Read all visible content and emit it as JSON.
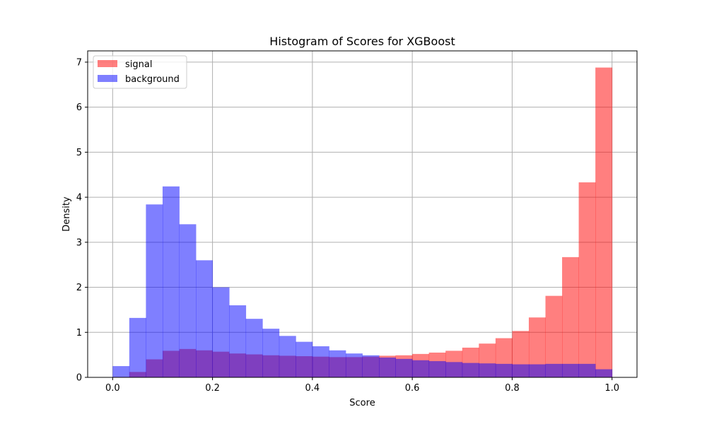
{
  "chart_data": {
    "type": "bar",
    "title": "Histogram of Scores for XGBoost",
    "xlabel": "Score",
    "ylabel": "Density",
    "xlim": [
      -0.05,
      1.05
    ],
    "ylim": [
      0,
      7.25
    ],
    "xticks": [
      0.0,
      0.2,
      0.4,
      0.6,
      0.8,
      1.0
    ],
    "xtick_labels": [
      "0.0",
      "0.2",
      "0.4",
      "0.6",
      "0.8",
      "1.0"
    ],
    "yticks": [
      0,
      1,
      2,
      3,
      4,
      5,
      6,
      7
    ],
    "ytick_labels": [
      "0",
      "1",
      "2",
      "3",
      "4",
      "5",
      "6",
      "7"
    ],
    "grid": true,
    "legend_position": "top-left",
    "bins": {
      "start": 0.0,
      "end": 1.0,
      "count": 30
    },
    "series": [
      {
        "name": "signal",
        "color": "#ff8080",
        "values": [
          0.01,
          0.12,
          0.4,
          0.59,
          0.63,
          0.6,
          0.57,
          0.53,
          0.51,
          0.49,
          0.48,
          0.47,
          0.46,
          0.45,
          0.45,
          0.46,
          0.48,
          0.49,
          0.52,
          0.55,
          0.59,
          0.66,
          0.75,
          0.87,
          1.03,
          1.33,
          1.81,
          2.67,
          4.33,
          6.88
        ]
      },
      {
        "name": "background",
        "color": "#8080ff",
        "values": [
          0.25,
          1.32,
          3.84,
          4.24,
          3.4,
          2.6,
          2.0,
          1.6,
          1.3,
          1.08,
          0.92,
          0.79,
          0.69,
          0.6,
          0.53,
          0.49,
          0.44,
          0.41,
          0.38,
          0.36,
          0.34,
          0.32,
          0.31,
          0.3,
          0.29,
          0.29,
          0.3,
          0.3,
          0.3,
          0.18
        ]
      }
    ]
  }
}
